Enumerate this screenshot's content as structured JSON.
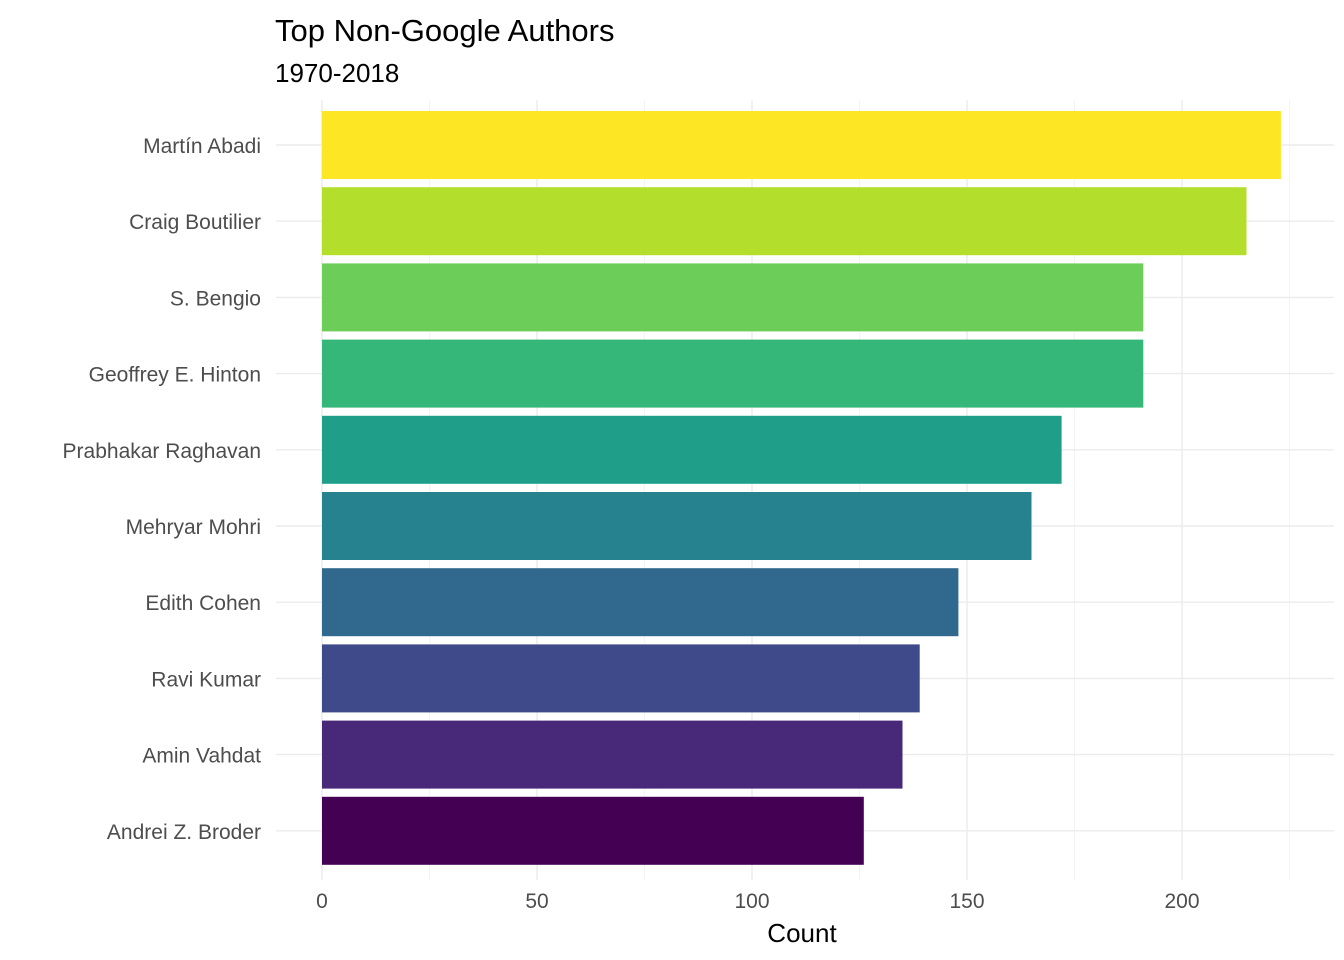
{
  "chart_data": {
    "type": "bar",
    "orientation": "horizontal",
    "title": "Top Non-Google Authors",
    "subtitle": "1970-2018",
    "xlabel": "Count",
    "ylabel": "",
    "xlim": [
      0,
      225
    ],
    "xticks": [
      "0",
      "50",
      "100",
      "150",
      "200"
    ],
    "grid": true,
    "legend": "none",
    "categories": [
      "Martín Abadi",
      "Craig Boutilier",
      "S. Bengio",
      "Geoffrey E. Hinton",
      "Prabhakar Raghavan",
      "Mehryar Mohri",
      "Edith Cohen",
      "Ravi Kumar",
      "Amin Vahdat",
      "Andrei Z. Broder"
    ],
    "values": [
      223,
      215,
      191,
      191,
      172,
      165,
      148,
      139,
      135,
      126
    ],
    "colors": [
      "#FDE725",
      "#B4DE2C",
      "#6DCD59",
      "#35B779",
      "#1F9E89",
      "#26828E",
      "#31688E",
      "#3E4A89",
      "#482878",
      "#440154"
    ]
  }
}
